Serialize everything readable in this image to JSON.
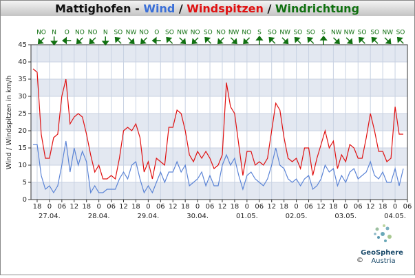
{
  "chart_data": {
    "type": "line",
    "title_parts": [
      {
        "text": "Mattighofen - ",
        "color": "#111111"
      },
      {
        "text": "Wind",
        "color": "#3a6fd8"
      },
      {
        "text": " / ",
        "color": "#111111"
      },
      {
        "text": "Windspitzen",
        "color": "#e01010"
      },
      {
        "text": " / ",
        "color": "#111111"
      },
      {
        "text": "Windrichtung",
        "color": "#107010"
      }
    ],
    "ylabel": "Wind / Windspitzen in km/h",
    "x": [
      16,
      18,
      20,
      22,
      24,
      26,
      28,
      30,
      32,
      34,
      36,
      38,
      40,
      42,
      44,
      46,
      48,
      50,
      52,
      54,
      56,
      58,
      60,
      62,
      64,
      66,
      68,
      70,
      72,
      74,
      76,
      78,
      80,
      82,
      84,
      86,
      88,
      90,
      92,
      94,
      96,
      98,
      100,
      102,
      104,
      106,
      108,
      110,
      112,
      114,
      116,
      118,
      120,
      122,
      124,
      126,
      128,
      130,
      132,
      134,
      136,
      138,
      140,
      142,
      144,
      146,
      148,
      150,
      152,
      154,
      156,
      158,
      160,
      162,
      164,
      166,
      168,
      170,
      172,
      174,
      176,
      178,
      180,
      182,
      184,
      186,
      188,
      190,
      192,
      194,
      196
    ],
    "series": [
      {
        "name": "Windspitzen",
        "color": "#e01010",
        "values": [
          38,
          37,
          19,
          12,
          12,
          18,
          19,
          30,
          35,
          22,
          24,
          25,
          24,
          19,
          13,
          8,
          10,
          6,
          6,
          7,
          6,
          12,
          20,
          21,
          20,
          22,
          18,
          8,
          11,
          6,
          12,
          11,
          10,
          21,
          21,
          26,
          25,
          20,
          13,
          11,
          14,
          12,
          14,
          12,
          9,
          10,
          13,
          34,
          27,
          25,
          16,
          7,
          14,
          14,
          10,
          11,
          10,
          12,
          20,
          28,
          26,
          18,
          12,
          11,
          12,
          9,
          15,
          15,
          7,
          12,
          16,
          20,
          15,
          17,
          9,
          13,
          11,
          16,
          15,
          12,
          12,
          18,
          25,
          20,
          14,
          14,
          11,
          12,
          27,
          19,
          19
        ]
      },
      {
        "name": "Wind",
        "color": "#5b84d6",
        "values": [
          16,
          16,
          7,
          3,
          4,
          2,
          4,
          10,
          17,
          8,
          15,
          10,
          14,
          11,
          2,
          4,
          2,
          2,
          3,
          3,
          3,
          6,
          8,
          6,
          10,
          11,
          6,
          2,
          4,
          2,
          5,
          8,
          5,
          8,
          8,
          11,
          8,
          10,
          4,
          5,
          6,
          8,
          4,
          7,
          4,
          4,
          10,
          13,
          10,
          12,
          7,
          3,
          7,
          8,
          6,
          5,
          4,
          6,
          10,
          15,
          10,
          9,
          6,
          5,
          6,
          4,
          6,
          7,
          3,
          4,
          6,
          10,
          8,
          9,
          4,
          7,
          5,
          8,
          9,
          6,
          7,
          8,
          11,
          7,
          6,
          8,
          5,
          5,
          9,
          4,
          9
        ]
      }
    ],
    "xlim": [
      15,
      198
    ],
    "ylim": [
      0,
      45
    ],
    "yticks": [
      0,
      5,
      10,
      15,
      20,
      25,
      30,
      35,
      40,
      45
    ],
    "xticks": [
      18,
      {
        "value": 24,
        "label": "0"
      },
      {
        "value": 30,
        "label": "06"
      },
      {
        "value": 36,
        "label": "12"
      },
      {
        "value": 42,
        "label": "18"
      },
      {
        "value": 48,
        "label": "0"
      },
      {
        "value": 54,
        "label": "06"
      },
      {
        "value": 60,
        "label": "12"
      },
      {
        "value": 66,
        "label": "18"
      },
      {
        "value": 72,
        "label": "0"
      },
      {
        "value": 78,
        "label": "06"
      },
      {
        "value": 84,
        "label": "12"
      },
      {
        "value": 90,
        "label": "18"
      },
      {
        "value": 96,
        "label": "0"
      },
      {
        "value": 102,
        "label": "06"
      },
      {
        "value": 108,
        "label": "12"
      },
      {
        "value": 114,
        "label": "18"
      },
      {
        "value": 120,
        "label": "0"
      },
      {
        "value": 126,
        "label": "06"
      },
      {
        "value": 132,
        "label": "12"
      },
      {
        "value": 138,
        "label": "18"
      },
      {
        "value": 144,
        "label": "0"
      },
      {
        "value": 150,
        "label": "06"
      },
      {
        "value": 156,
        "label": "12"
      },
      {
        "value": 162,
        "label": "18"
      },
      {
        "value": 168,
        "label": "0"
      },
      {
        "value": 174,
        "label": "06"
      },
      {
        "value": 180,
        "label": "12"
      },
      {
        "value": 186,
        "label": "18"
      },
      {
        "value": 192,
        "label": "0"
      },
      {
        "value": 198,
        "label": "06"
      }
    ],
    "date_ticks": [
      {
        "value": 24,
        "label": "27.04."
      },
      {
        "value": 48,
        "label": "28.04."
      },
      {
        "value": 72,
        "label": "29.04."
      },
      {
        "value": 96,
        "label": "30.04."
      },
      {
        "value": 120,
        "label": "01.05."
      },
      {
        "value": 144,
        "label": "02.05."
      },
      {
        "value": 168,
        "label": "03.05."
      },
      {
        "value": 192,
        "label": "04.05."
      }
    ],
    "directions": {
      "color": "#107010",
      "labels": [
        "NO",
        "N",
        "O",
        "NO",
        "NO",
        "N",
        "SO",
        "NW",
        "NO",
        "O",
        "SO",
        "NW",
        "NO",
        "SO",
        "NO",
        "NW",
        "NO",
        "S",
        "SO",
        "NW",
        "SO",
        "SO",
        "S",
        "NW",
        "NW",
        "SO",
        "SO",
        "NW",
        "SO"
      ]
    },
    "grid": true,
    "logo": {
      "name": "GeoSphere",
      "sub": "Austria",
      "copyright": "©"
    }
  }
}
